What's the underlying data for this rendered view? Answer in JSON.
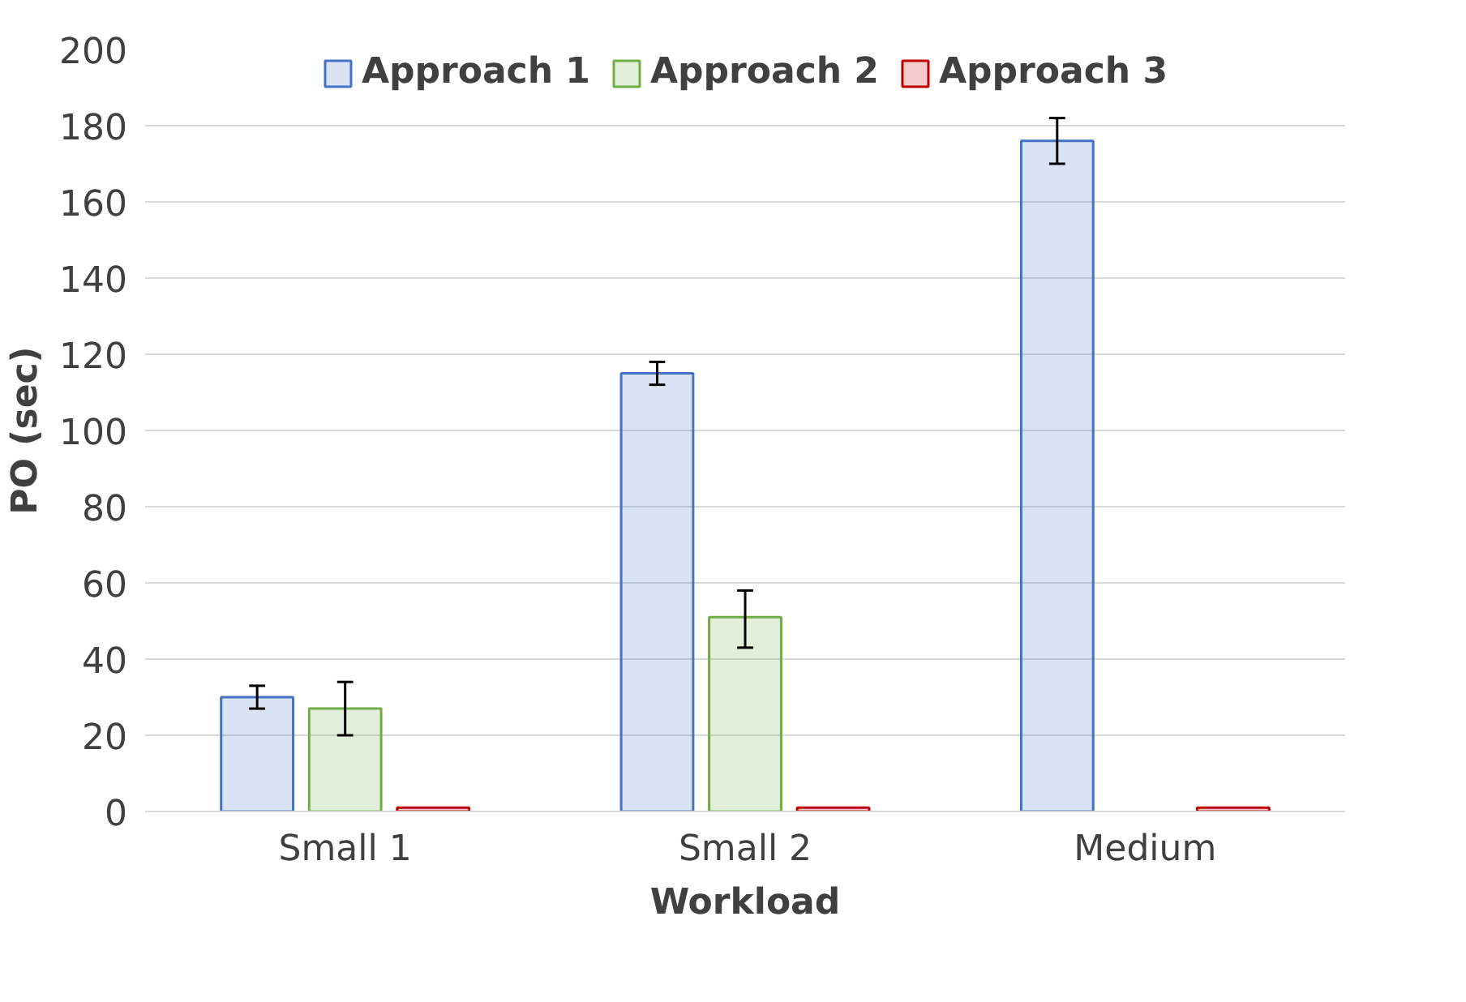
{
  "chart_data": {
    "type": "bar",
    "xlabel": "Workload",
    "ylabel": "PO (sec)",
    "categories": [
      "Small 1",
      "Small 2",
      "Medium"
    ],
    "series": [
      {
        "name": "Approach 1",
        "color": "#4472c4",
        "values": [
          30,
          115,
          176
        ],
        "errors": [
          [
            27,
            33
          ],
          [
            112,
            118
          ],
          [
            170,
            182
          ]
        ]
      },
      {
        "name": "Approach 2",
        "color": "#70ad47",
        "values": [
          27,
          51,
          null
        ],
        "errors": [
          [
            20,
            34
          ],
          [
            43,
            58
          ],
          null
        ]
      },
      {
        "name": "Approach 3",
        "color": "#c00000",
        "values": [
          1,
          1,
          1
        ]
      }
    ],
    "ylim": [
      0,
      200
    ],
    "yticks": [
      0,
      20,
      40,
      60,
      80,
      100,
      120,
      140,
      160,
      180,
      200
    ],
    "grid": "y",
    "legend": "top"
  }
}
